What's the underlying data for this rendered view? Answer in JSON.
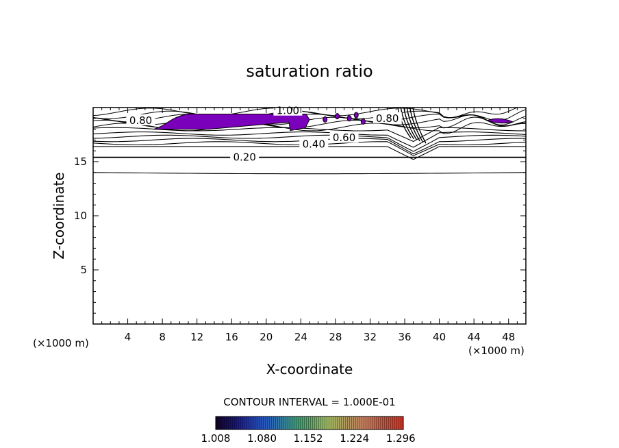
{
  "chart_data": {
    "type": "contour",
    "title": "saturation ratio",
    "xlabel": "X-coordinate",
    "ylabel": "Z-coordinate",
    "x_unit": "(×1000 m)",
    "x_unit_right": "(×1000 m)",
    "xlim": [
      0,
      50
    ],
    "ylim": [
      0,
      20
    ],
    "x_ticks": [
      4,
      8,
      12,
      16,
      20,
      24,
      28,
      32,
      36,
      40,
      44,
      48
    ],
    "y_ticks": [
      5,
      10,
      15
    ],
    "contour_interval_text": "CONTOUR INTERVAL = 1.000E-01",
    "contour_labels": [
      {
        "text": "0.20",
        "x": 17.5,
        "z": 15.4
      },
      {
        "text": "0.40",
        "x": 25.5,
        "z": 16.6
      },
      {
        "text": "0.60",
        "x": 29.0,
        "z": 17.2
      },
      {
        "text": "0.80",
        "x": 34.0,
        "z": 19.0
      },
      {
        "text": "0.80",
        "x": 5.5,
        "z": 18.8
      },
      {
        "text": "1.00",
        "x": 22.5,
        "z": 19.7
      }
    ],
    "contour_levels_z_left": [
      14.0,
      15.4,
      16.4,
      16.7,
      17.0,
      17.3,
      17.6,
      18.0
    ],
    "supersaturated_regions": [
      {
        "x": [
          7,
          25
        ],
        "z": [
          18.0,
          19.4
        ]
      },
      {
        "x": [
          45.5,
          48.5
        ],
        "z": [
          18.6,
          19.0
        ]
      }
    ],
    "fill_color": "#7b00bb",
    "colorbar": {
      "ticks": [
        "1.008",
        "1.080",
        "1.152",
        "1.224",
        "1.296"
      ],
      "min": 1.008,
      "max": 1.3
    }
  }
}
